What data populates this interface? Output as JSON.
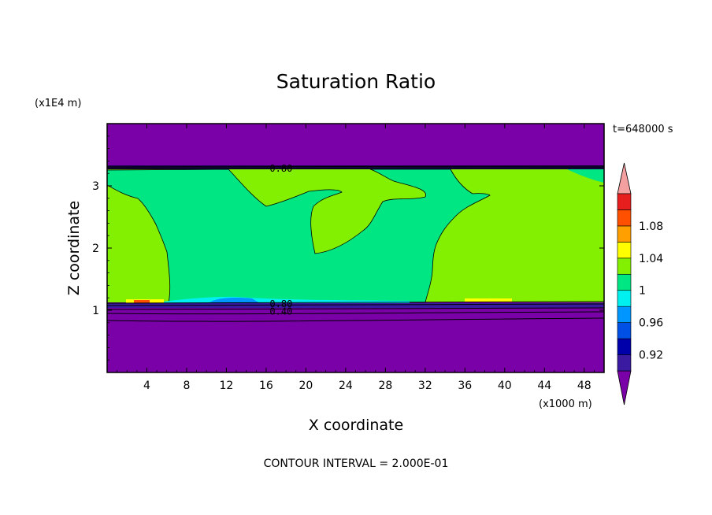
{
  "chart_data": {
    "type": "heatmap",
    "title": "Saturation Ratio",
    "xlabel": "X coordinate",
    "ylabel": "Z coordinate",
    "x_scale_label": "(x1000 m)",
    "y_scale_label": "(x1E4 m)",
    "time_label": "t=648000 s",
    "footer": "CONTOUR INTERVAL = 2.000E-01",
    "xlim": [
      0,
      50
    ],
    "ylim": [
      0,
      4
    ],
    "x_ticks": [
      "4",
      "8",
      "12",
      "16",
      "20",
      "24",
      "28",
      "32",
      "36",
      "40",
      "44",
      "48"
    ],
    "y_ticks": [
      "1",
      "2",
      "3"
    ],
    "colorbar": {
      "levels": [
        {
          "min": null,
          "max": 0.9,
          "color": "#7a00a8"
        },
        {
          "min": 0.9,
          "max": 0.92,
          "color": "#3a1aa0"
        },
        {
          "min": 0.92,
          "max": 0.94,
          "color": "#0000aa"
        },
        {
          "min": 0.94,
          "max": 0.96,
          "color": "#0050e6"
        },
        {
          "min": 0.96,
          "max": 0.98,
          "color": "#0096ff"
        },
        {
          "min": 0.98,
          "max": 1.0,
          "color": "#00f0f0"
        },
        {
          "min": 1.0,
          "max": 1.02,
          "color": "#00e682"
        },
        {
          "min": 1.02,
          "max": 1.04,
          "color": "#82f000"
        },
        {
          "min": 1.04,
          "max": 1.06,
          "color": "#ffff00"
        },
        {
          "min": 1.06,
          "max": 1.08,
          "color": "#ffa000"
        },
        {
          "min": 1.08,
          "max": 1.1,
          "color": "#ff5000"
        },
        {
          "min": 1.1,
          "max": 1.12,
          "color": "#e61e1e"
        },
        {
          "min": 1.12,
          "max": null,
          "color": "#f5a0a0"
        }
      ],
      "tick_labels": [
        "1.08",
        "1.04",
        "1",
        "0.96",
        "0.92"
      ],
      "tick_values": [
        1.08,
        1.04,
        1.0,
        0.96,
        0.92
      ]
    },
    "contour_labels": [
      {
        "text": "0.80",
        "x": 17.5,
        "z": 3.28
      },
      {
        "text": "0.80",
        "x": 17.5,
        "z": 1.1
      },
      {
        "text": "0.40",
        "x": 17.5,
        "z": 0.98
      }
    ],
    "regions": {
      "upper_dry_layer": {
        "z_range": [
          3.28,
          4.0
        ],
        "value": "<0.90"
      },
      "lower_dry_layer": {
        "z_range": [
          0.0,
          1.12
        ],
        "value": "<0.90"
      },
      "cloud_layer": {
        "z_range": [
          1.12,
          3.28
        ],
        "values": [
          "1.00-1.02",
          "1.02-1.04"
        ]
      }
    }
  }
}
